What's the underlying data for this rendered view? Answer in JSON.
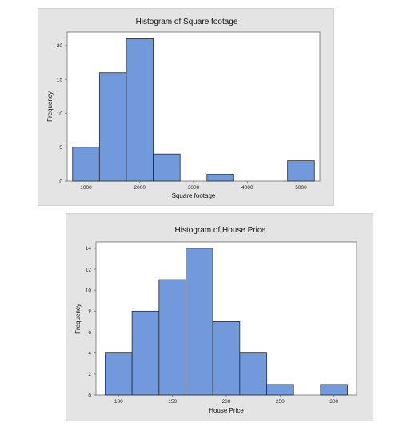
{
  "chart_data": [
    {
      "type": "bar",
      "title": "Histogram of Square footage",
      "xlabel": "Square footage",
      "ylabel": "Frequency",
      "bins": [
        {
          "start": 750,
          "end": 1250,
          "value": 5
        },
        {
          "start": 1250,
          "end": 1750,
          "value": 16
        },
        {
          "start": 1750,
          "end": 2250,
          "value": 21
        },
        {
          "start": 2250,
          "end": 2750,
          "value": 4
        },
        {
          "start": 2750,
          "end": 3250,
          "value": 0
        },
        {
          "start": 3250,
          "end": 3750,
          "value": 1
        },
        {
          "start": 3750,
          "end": 4250,
          "value": 0
        },
        {
          "start": 4250,
          "end": 4750,
          "value": 0
        },
        {
          "start": 4750,
          "end": 5250,
          "value": 3
        }
      ],
      "xlim": [
        650,
        5350
      ],
      "ylim": [
        0,
        22
      ],
      "xticks": [
        "1000",
        "2000",
        "3000",
        "4000",
        "5000"
      ],
      "xtick_values": [
        1000,
        2000,
        3000,
        4000,
        5000
      ],
      "yticks": [
        "0",
        "5",
        "10",
        "15",
        "20"
      ],
      "ytick_values": [
        0,
        5,
        10,
        15,
        20
      ],
      "grid": false,
      "legend": "none"
    },
    {
      "type": "bar",
      "title": "Histogram of House Price",
      "xlabel": "House Price",
      "ylabel": "Frequency",
      "bins": [
        {
          "start": 87.5,
          "end": 112.5,
          "value": 4
        },
        {
          "start": 112.5,
          "end": 137.5,
          "value": 8
        },
        {
          "start": 137.5,
          "end": 162.5,
          "value": 11
        },
        {
          "start": 162.5,
          "end": 187.5,
          "value": 14
        },
        {
          "start": 187.5,
          "end": 212.5,
          "value": 7
        },
        {
          "start": 212.5,
          "end": 237.5,
          "value": 4
        },
        {
          "start": 237.5,
          "end": 262.5,
          "value": 1
        },
        {
          "start": 262.5,
          "end": 287.5,
          "value": 0
        },
        {
          "start": 287.5,
          "end": 312.5,
          "value": 1
        }
      ],
      "xlim": [
        79,
        321
      ],
      "ylim": [
        0,
        14.6
      ],
      "xticks": [
        "100",
        "150",
        "200",
        "250",
        "300"
      ],
      "xtick_values": [
        100,
        150,
        200,
        250,
        300
      ],
      "yticks": [
        "0",
        "2",
        "4",
        "6",
        "8",
        "10",
        "12",
        "14"
      ],
      "ytick_values": [
        0,
        2,
        4,
        6,
        8,
        10,
        12,
        14
      ],
      "grid": false,
      "legend": "none"
    }
  ],
  "colors": {
    "bar_fill": "#7199db",
    "bar_edge": "#2a2a2a",
    "panel_bg": "#e4e4e4",
    "plot_bg": "#ffffff"
  }
}
